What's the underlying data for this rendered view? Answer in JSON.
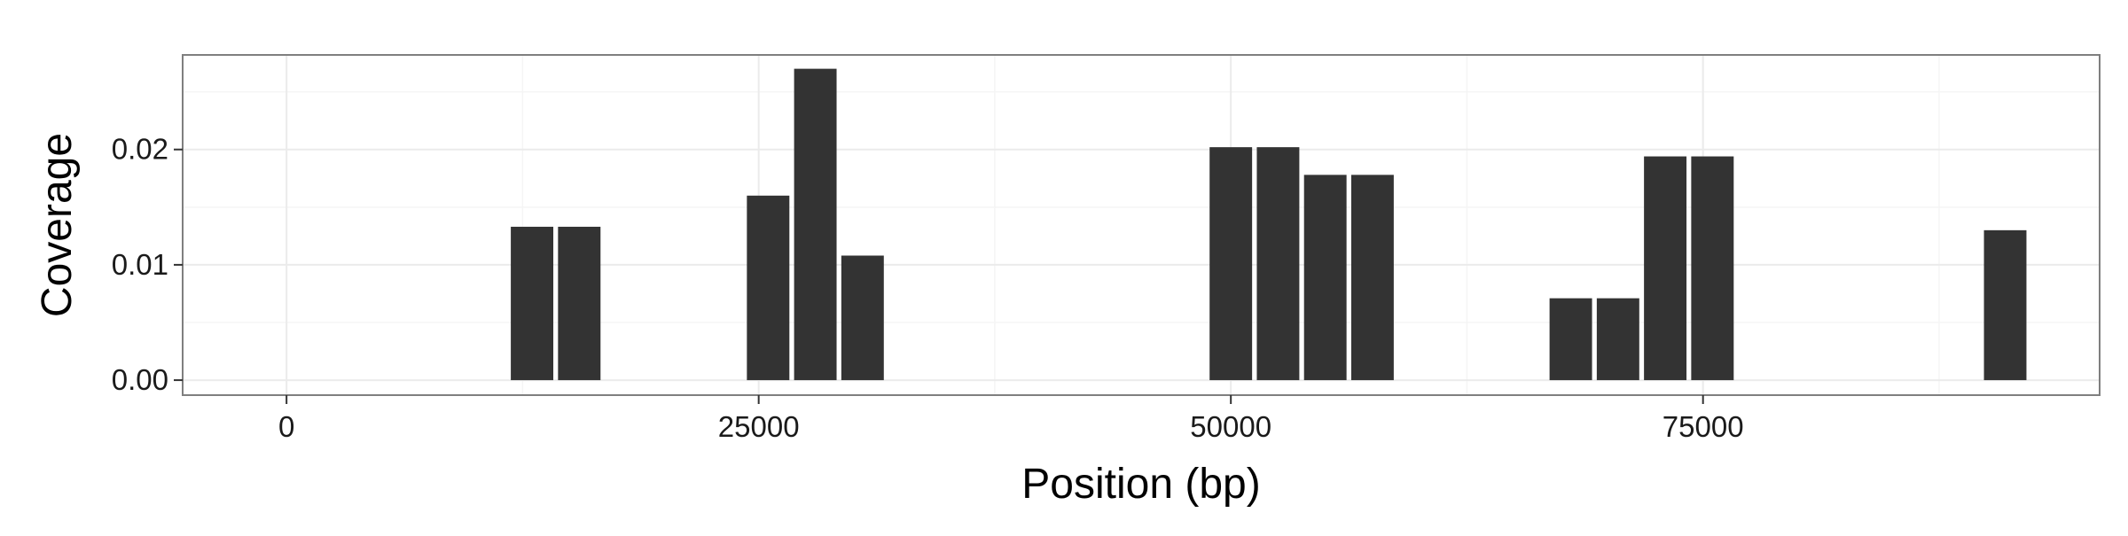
{
  "chart_data": {
    "type": "bar",
    "title": "",
    "xlabel": "Position (bp)",
    "ylabel": "Coverage",
    "xlim": [
      -5500,
      96000
    ],
    "ylim": [
      -0.0013,
      0.0282
    ],
    "x_ticks": [
      0,
      25000,
      50000,
      75000
    ],
    "x_tick_labels": [
      "0",
      "25000",
      "50000",
      "75000"
    ],
    "y_ticks": [
      0.0,
      0.01,
      0.02
    ],
    "y_tick_labels": [
      "0.00",
      "0.01",
      "0.02"
    ],
    "bar_width": 2250,
    "grid": true,
    "legend": "none",
    "colors": {
      "bar": "#333333",
      "panel_background": "#ffffff",
      "panel_border": "#7f7f7f",
      "grid_major": "#ebebeb",
      "grid_minor": "#f5f5f5",
      "axis_tick": "#333333"
    },
    "series": [
      {
        "x": [
          13000,
          15500,
          25500,
          28000,
          30500,
          50000,
          52500,
          55000,
          57500,
          68000,
          70500,
          73000,
          75500,
          91000
        ],
        "values": [
          0.0133,
          0.0133,
          0.016,
          0.027,
          0.0108,
          0.0202,
          0.0202,
          0.0178,
          0.0178,
          0.0071,
          0.0071,
          0.0194,
          0.0194,
          0.013
        ]
      }
    ]
  }
}
